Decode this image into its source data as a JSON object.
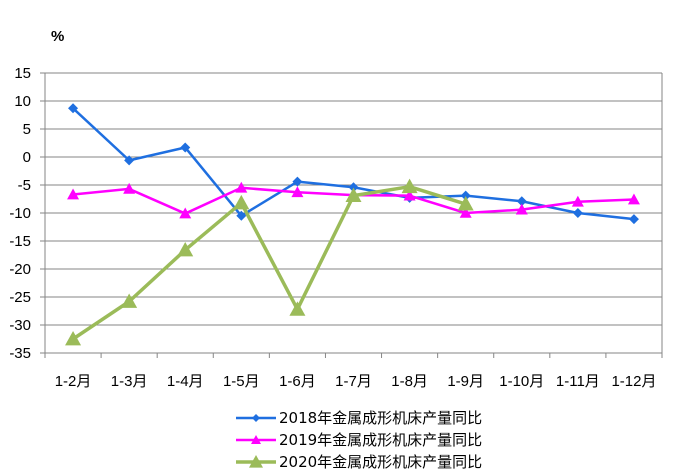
{
  "chart_data": {
    "type": "line",
    "ylabel": "%",
    "ylim": [
      -35,
      15
    ],
    "ytick_step": 5,
    "grid": true,
    "legend_position": "bottom",
    "categories": [
      "1-2月",
      "1-3月",
      "1-4月",
      "1-5月",
      "1-6月",
      "1-7月",
      "1-8月",
      "1-9月",
      "1-10月",
      "1-11月",
      "1-12月"
    ],
    "series": [
      {
        "name": "2018年金属成形机床产量同比",
        "color": "#1f6fe0",
        "marker": "diamond",
        "values": [
          8.7,
          -0.6,
          1.7,
          -10.5,
          -4.4,
          -5.4,
          -7.3,
          -6.9,
          -7.9,
          -10.0,
          -11.1
        ]
      },
      {
        "name": "2019年金属成形机床产量同比",
        "color": "#ff00ff",
        "marker": "triangle",
        "values": [
          -6.7,
          -5.7,
          -10.1,
          -5.5,
          -6.3,
          -6.8,
          -6.9,
          -10.0,
          -9.4,
          -8.0,
          -7.6
        ]
      },
      {
        "name": "2020年金属成形机床产量同比",
        "color": "#9bbb59",
        "marker": "triangle",
        "values": [
          -32.5,
          -25.8,
          -16.6,
          -8.2,
          -27.2,
          -6.9,
          -5.3,
          -8.4,
          null,
          null,
          null
        ]
      }
    ]
  }
}
